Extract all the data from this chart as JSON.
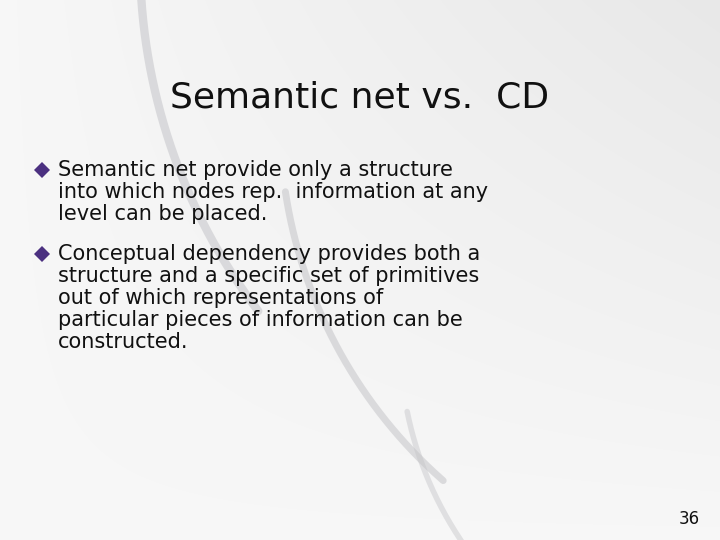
{
  "title": "Semantic net vs.  CD",
  "bullet1_lines": [
    "Semantic net provide only a structure",
    "into which nodes rep.  information at any",
    "level can be placed."
  ],
  "bullet2_lines": [
    "Conceptual dependency provides both a",
    "structure and a specific set of primitives",
    "out of which representations of",
    "particular pieces of information can be",
    "constructed."
  ],
  "bullet_color": "#4B3080",
  "text_color": "#111111",
  "bg_color": "#f0f0f2",
  "arc_color": "#d0d0d4",
  "page_number": "36",
  "title_fontsize": 26,
  "body_fontsize": 15,
  "page_num_fontsize": 12
}
